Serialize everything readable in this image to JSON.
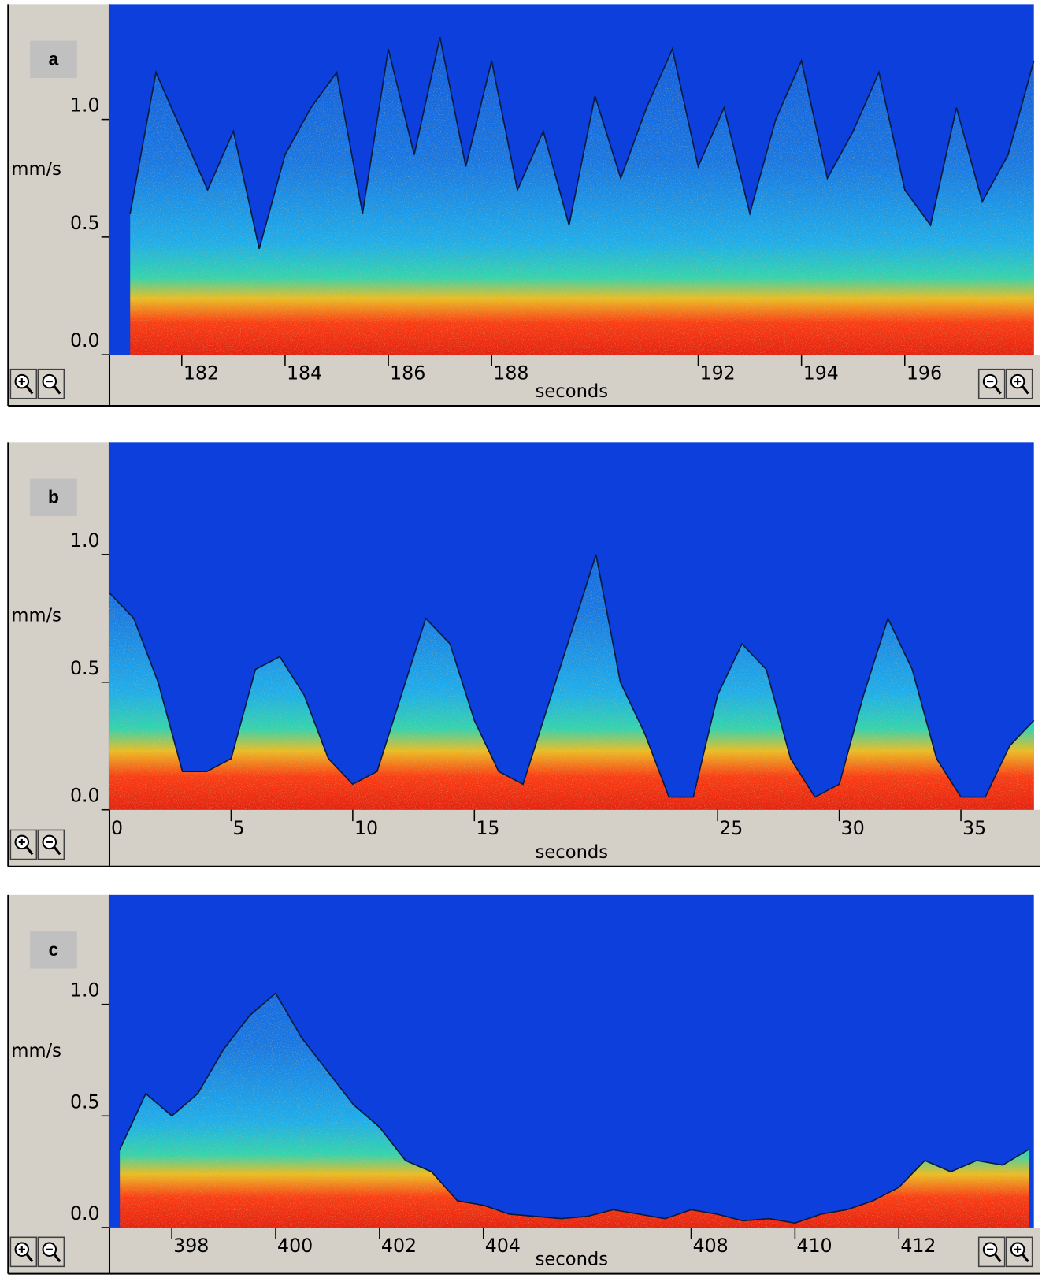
{
  "chart_data": [
    {
      "type": "spectrogram",
      "panel_label": "a",
      "ylabel": "mm/s",
      "xlabel": "seconds",
      "x": [
        181,
        181.5,
        182,
        182.5,
        183,
        183.5,
        184,
        184.5,
        185,
        185.5,
        186,
        186.5,
        187,
        187.5,
        188,
        188.5,
        189,
        189.5,
        190,
        190.5,
        191,
        191.5,
        192,
        192.5,
        193,
        193.5,
        194,
        194.5,
        195,
        195.5,
        196,
        196.5,
        197,
        197.5,
        198,
        198.5
      ],
      "values": [
        0.6,
        1.2,
        0.95,
        0.7,
        0.95,
        0.45,
        0.85,
        1.05,
        1.2,
        0.6,
        1.3,
        0.85,
        1.35,
        0.8,
        1.25,
        0.7,
        0.95,
        0.55,
        1.1,
        0.75,
        1.05,
        1.3,
        0.8,
        1.05,
        0.6,
        1.0,
        1.25,
        0.75,
        0.95,
        1.2,
        0.7,
        0.55,
        1.05,
        0.65,
        0.85,
        1.25
      ],
      "xlim": [
        180.6,
        198.5
      ],
      "ylim": [
        0,
        1.49
      ],
      "xticks": [
        182,
        184,
        186,
        188,
        192,
        194,
        196
      ],
      "yticks": [
        {
          "value": 0,
          "label": "0.0"
        },
        {
          "value": 0.5,
          "label": "0.5"
        },
        {
          "value": 1,
          "label": "1.0"
        }
      ],
      "color": "#0a1a3a",
      "background": "#0c3fdc"
    },
    {
      "type": "spectrogram",
      "panel_label": "b",
      "ylabel": "mm/s",
      "xlabel": "seconds",
      "x": [
        0,
        1,
        2,
        3,
        4,
        5,
        6,
        7,
        8,
        9,
        10,
        11,
        12,
        13,
        14,
        15,
        16,
        17,
        18,
        19,
        20,
        21,
        22,
        23,
        24,
        25,
        26,
        27,
        28,
        29,
        30,
        31,
        32,
        33,
        34,
        35,
        36,
        37,
        38
      ],
      "values": [
        0.85,
        0.75,
        0.5,
        0.15,
        0.15,
        0.2,
        0.55,
        0.6,
        0.45,
        0.2,
        0.1,
        0.15,
        0.45,
        0.75,
        0.65,
        0.35,
        0.15,
        0.1,
        0.4,
        0.7,
        1.0,
        0.5,
        0.3,
        0.05,
        0.05,
        0.45,
        0.65,
        0.55,
        0.2,
        0.05,
        0.1,
        0.45,
        0.75,
        0.55,
        0.2,
        0.05,
        0.05,
        0.25,
        0.35
      ],
      "xlim": [
        0,
        38
      ],
      "ylim": [
        0,
        1.44
      ],
      "xticks": [
        0,
        5,
        10,
        15,
        25,
        30,
        35
      ],
      "yticks": [
        {
          "value": 0,
          "label": "0.0"
        },
        {
          "value": 0.5,
          "label": "0.5"
        },
        {
          "value": 1,
          "label": "1.0"
        }
      ],
      "color": "#0a1a3a",
      "background": "#0c3fdc"
    },
    {
      "type": "spectrogram",
      "panel_label": "c",
      "ylabel": "mm/s",
      "xlabel": "seconds",
      "x": [
        397,
        397.5,
        398,
        398.5,
        399,
        399.5,
        400,
        400.5,
        401,
        401.5,
        402,
        402.5,
        403,
        403.5,
        404,
        404.5,
        405,
        405.5,
        406,
        406.5,
        407,
        407.5,
        408,
        408.5,
        409,
        409.5,
        410,
        410.5,
        411,
        411.5,
        412,
        412.5,
        413,
        413.5,
        414,
        414.5
      ],
      "values": [
        0.35,
        0.6,
        0.5,
        0.6,
        0.8,
        0.95,
        1.05,
        0.85,
        0.7,
        0.55,
        0.45,
        0.3,
        0.25,
        0.12,
        0.1,
        0.06,
        0.05,
        0.04,
        0.05,
        0.08,
        0.06,
        0.04,
        0.08,
        0.06,
        0.03,
        0.04,
        0.02,
        0.06,
        0.08,
        0.12,
        0.18,
        0.3,
        0.25,
        0.3,
        0.28,
        0.35
      ],
      "xlim": [
        396.8,
        414.6
      ],
      "ylim": [
        0,
        1.49
      ],
      "xticks": [
        398,
        400,
        402,
        404,
        408,
        410,
        412
      ],
      "yticks": [
        {
          "value": 0,
          "label": "0.0"
        },
        {
          "value": 0.5,
          "label": "0.5"
        },
        {
          "value": 1,
          "label": "1.0"
        }
      ],
      "color": "#0a1a3a",
      "background": "#0c3fdc"
    }
  ]
}
